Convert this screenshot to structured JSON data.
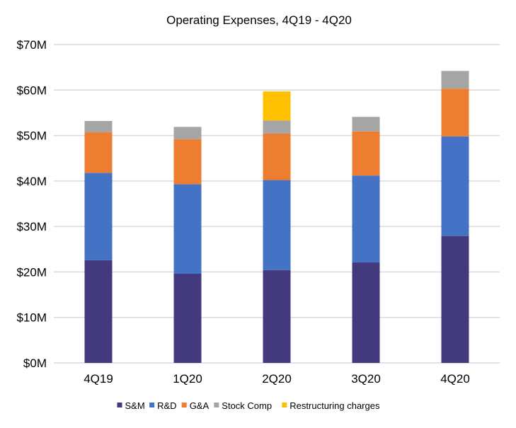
{
  "chart_data": {
    "type": "bar",
    "stacked": true,
    "title": "Operating Expenses, 4Q19 - 4Q20",
    "xlabel": "",
    "ylabel": "",
    "ylim": [
      0,
      70
    ],
    "yticks": [
      "$0M",
      "$10M",
      "$20M",
      "$30M",
      "$40M",
      "$50M",
      "$60M",
      "$70M"
    ],
    "ytick_values": [
      0,
      10,
      20,
      30,
      40,
      50,
      60,
      70
    ],
    "grid": true,
    "legend": "bottom",
    "categories": [
      "4Q19",
      "1Q20",
      "2Q20",
      "3Q20",
      "4Q20"
    ],
    "series": [
      {
        "name": "S&M",
        "color": "#433A7E",
        "values": [
          22.6,
          19.6,
          20.4,
          22.1,
          27.9
        ]
      },
      {
        "name": "R&D",
        "color": "#4472C4",
        "values": [
          19.2,
          19.7,
          19.8,
          19.1,
          21.9
        ]
      },
      {
        "name": "G&A",
        "color": "#ED7D31",
        "values": [
          8.9,
          9.9,
          10.2,
          9.7,
          10.5
        ]
      },
      {
        "name": "Stock Comp",
        "color": "#A5A5A5",
        "values": [
          2.5,
          2.7,
          2.9,
          3.2,
          3.9
        ]
      },
      {
        "name": "Restructuring charges",
        "color": "#FFC000",
        "values": [
          0,
          0,
          6.4,
          0,
          0
        ]
      }
    ]
  }
}
